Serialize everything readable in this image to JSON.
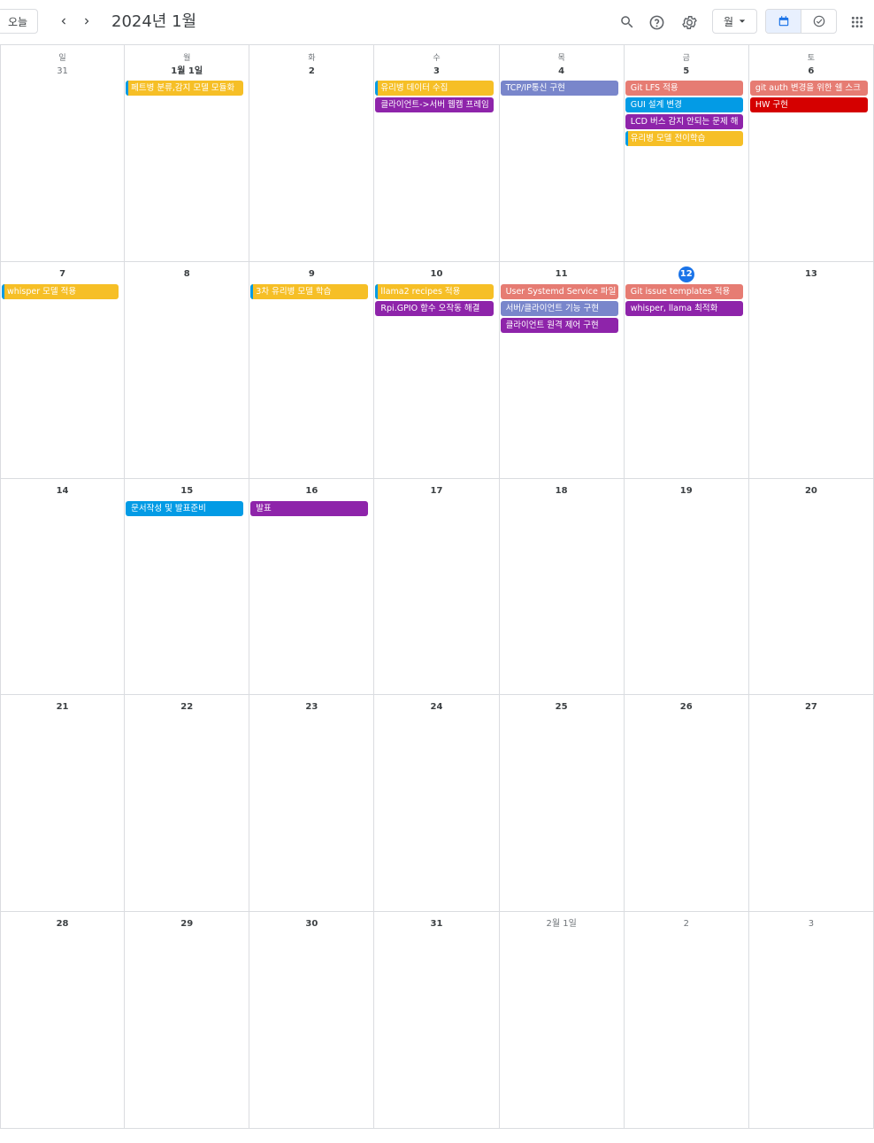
{
  "header": {
    "today_label": "오늘",
    "title": "2024년 1월",
    "view_label": "월",
    "icons": [
      "chevron-left-icon",
      "chevron-right-icon",
      "search-icon",
      "help-icon",
      "settings-icon",
      "caret-down-icon",
      "calendar-icon",
      "tasks-check-icon",
      "apps-grid-icon"
    ]
  },
  "colors": {
    "yellow": "#f6bf26",
    "purple": "#8e24aa",
    "lavender": "#7986cb",
    "flamingo": "#e67c73",
    "peacock": "#039be5",
    "tomato": "#d50000",
    "today_blue": "#1a73e8"
  },
  "weekdays": [
    "일",
    "월",
    "화",
    "수",
    "목",
    "금",
    "토"
  ],
  "weeks": [
    {
      "days": [
        {
          "label": "31",
          "other": true,
          "events": []
        },
        {
          "label": "1월 1일",
          "events": [
            {
              "title": "페트병 분류,감지 모델 모듈화",
              "color": "yellow"
            }
          ]
        },
        {
          "label": "2",
          "events": []
        },
        {
          "label": "3",
          "events": [
            {
              "title": "유리병 데이터 수집",
              "color": "yellow"
            },
            {
              "title": "클라이언트->서버 웹캠 프레임",
              "color": "purple"
            }
          ]
        },
        {
          "label": "4",
          "events": [
            {
              "title": "TCP/IP통신 구현",
              "color": "lavender"
            }
          ]
        },
        {
          "label": "5",
          "events": [
            {
              "title": "Git LFS 적용",
              "color": "flamingo"
            },
            {
              "title": "GUI 설계 변경",
              "color": "peacock"
            },
            {
              "title": "LCD 버스 감지 안되는 문제 해",
              "color": "purple"
            },
            {
              "title": "유리병 모델 전이학습",
              "color": "yellow"
            }
          ]
        },
        {
          "label": "6",
          "events": [
            {
              "title": "git auth 변경을 위한 쉘 스크",
              "color": "flamingo"
            },
            {
              "title": "HW 구현",
              "color": "tomato"
            }
          ]
        }
      ]
    },
    {
      "days": [
        {
          "label": "7",
          "events": [
            {
              "title": "whisper 모델 적용",
              "color": "yellow"
            }
          ]
        },
        {
          "label": "8",
          "events": []
        },
        {
          "label": "9",
          "events": [
            {
              "title": "3차 유리병 모델 학습",
              "color": "yellow"
            }
          ]
        },
        {
          "label": "10",
          "events": [
            {
              "title": "llama2 recipes 적용",
              "color": "yellow"
            },
            {
              "title": "Rpi.GPIO 함수 오작동 해결",
              "color": "purple"
            }
          ]
        },
        {
          "label": "11",
          "events": [
            {
              "title": "User Systemd Service 파일",
              "color": "flamingo"
            },
            {
              "title": "서버/클라이언트 기능 구현",
              "color": "lavender"
            },
            {
              "title": "클라이언트 원격 제어 구현",
              "color": "purple"
            }
          ]
        },
        {
          "label": "12",
          "today": true,
          "events": [
            {
              "title": "Git issue templates 적용",
              "color": "flamingo"
            },
            {
              "title": "whisper, llama 최적화",
              "color": "purple"
            }
          ]
        },
        {
          "label": "13",
          "events": []
        }
      ]
    },
    {
      "days": [
        {
          "label": "14",
          "events": []
        },
        {
          "label": "15",
          "events": [
            {
              "title": "문서작성 및 발표준비",
              "color": "peacock"
            }
          ]
        },
        {
          "label": "16",
          "events": [
            {
              "title": "발표",
              "color": "purple"
            }
          ]
        },
        {
          "label": "17",
          "events": []
        },
        {
          "label": "18",
          "events": []
        },
        {
          "label": "19",
          "events": []
        },
        {
          "label": "20",
          "events": []
        }
      ]
    },
    {
      "days": [
        {
          "label": "21",
          "events": []
        },
        {
          "label": "22",
          "events": []
        },
        {
          "label": "23",
          "events": []
        },
        {
          "label": "24",
          "events": []
        },
        {
          "label": "25",
          "events": []
        },
        {
          "label": "26",
          "events": []
        },
        {
          "label": "27",
          "events": []
        }
      ]
    },
    {
      "days": [
        {
          "label": "28",
          "events": []
        },
        {
          "label": "29",
          "events": []
        },
        {
          "label": "30",
          "events": []
        },
        {
          "label": "31",
          "events": []
        },
        {
          "label": "2월 1일",
          "other": true,
          "events": []
        },
        {
          "label": "2",
          "other": true,
          "events": []
        },
        {
          "label": "3",
          "other": true,
          "events": []
        }
      ]
    }
  ]
}
